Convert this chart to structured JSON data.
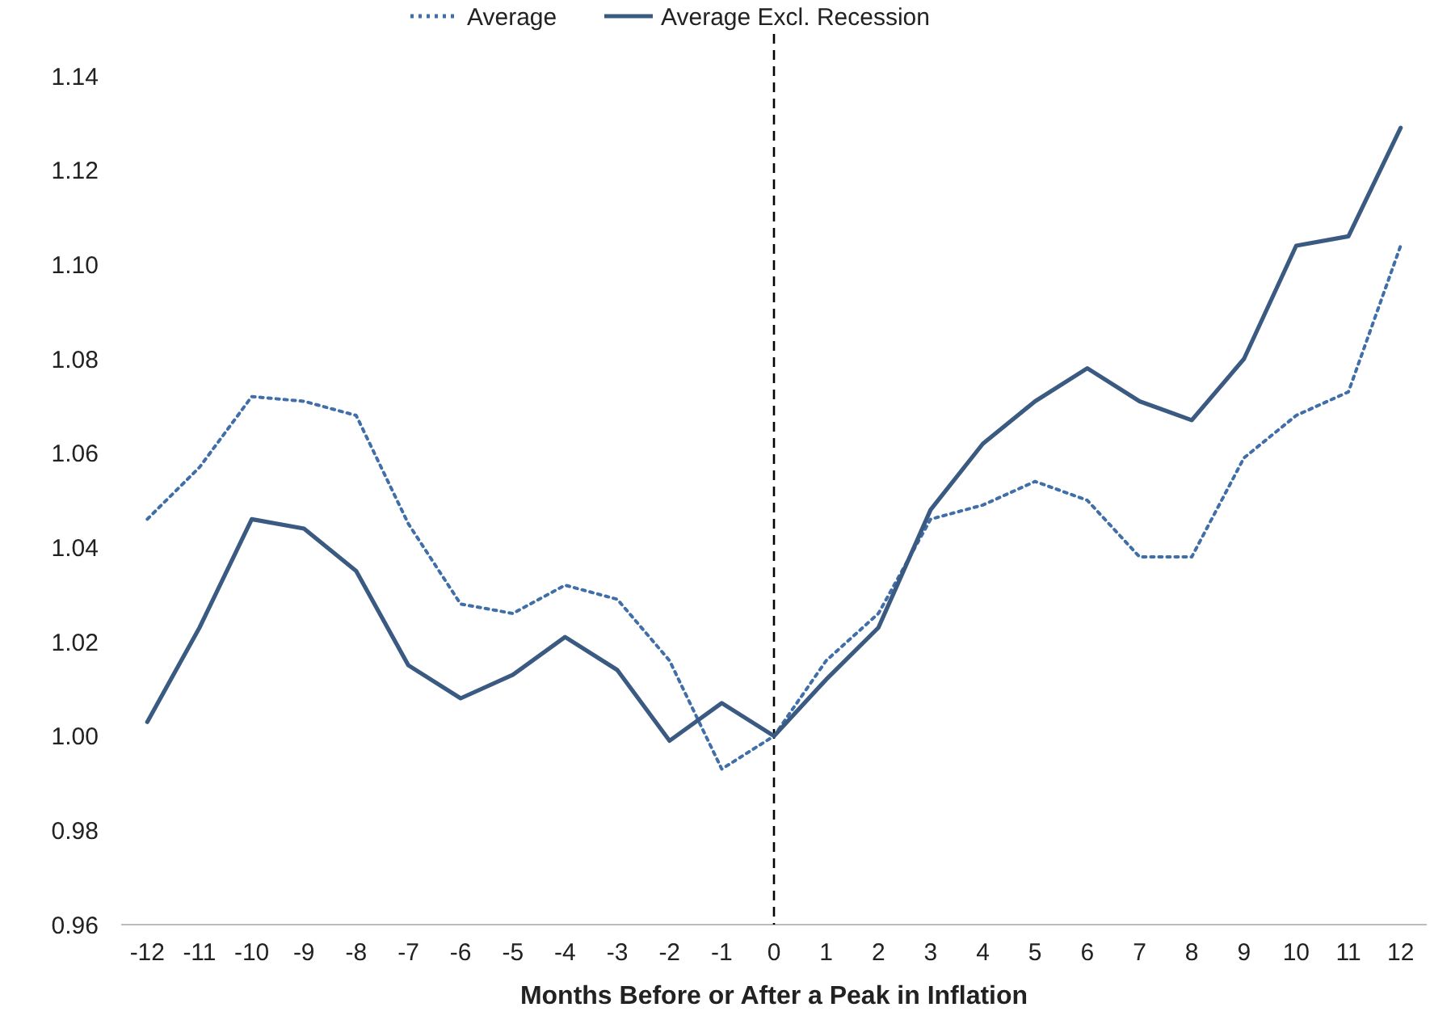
{
  "chart_data": {
    "type": "line",
    "xlabel": "Months Before or After a Peak in Inflation",
    "x": [
      -12,
      -11,
      -10,
      -9,
      -8,
      -7,
      -6,
      -5,
      -4,
      -3,
      -2,
      -1,
      0,
      1,
      2,
      3,
      4,
      5,
      6,
      7,
      8,
      9,
      10,
      11,
      12
    ],
    "series": [
      {
        "name": "Average",
        "color": "#3f6ea8",
        "line_style": "dotted",
        "values": [
          1.046,
          1.057,
          1.072,
          1.071,
          1.068,
          1.045,
          1.028,
          1.026,
          1.032,
          1.029,
          1.016,
          0.993,
          1.0,
          1.016,
          1.026,
          1.046,
          1.049,
          1.054,
          1.05,
          1.038,
          1.038,
          1.059,
          1.068,
          1.073,
          1.104
        ]
      },
      {
        "name": "Average Excl. Recession",
        "color": "#3b5a82",
        "line_style": "solid",
        "values": [
          1.003,
          1.023,
          1.046,
          1.044,
          1.035,
          1.015,
          1.008,
          1.013,
          1.021,
          1.014,
          0.999,
          1.007,
          1.0,
          1.012,
          1.023,
          1.048,
          1.062,
          1.071,
          1.078,
          1.071,
          1.067,
          1.08,
          1.104,
          1.106,
          1.129
        ]
      }
    ],
    "xlim": [
      -12.5,
      12.5
    ],
    "xticks": [
      -12,
      -11,
      -10,
      -9,
      -8,
      -7,
      -6,
      -5,
      -4,
      -3,
      -2,
      -1,
      0,
      1,
      2,
      3,
      4,
      5,
      6,
      7,
      8,
      9,
      10,
      11,
      12
    ],
    "ylim": [
      0.96,
      1.14
    ],
    "yticks": [
      {
        "value": 0.96,
        "label": "0.96"
      },
      {
        "value": 0.98,
        "label": "0.98"
      },
      {
        "value": 1.0,
        "label": "1.00"
      },
      {
        "value": 1.02,
        "label": "1.02"
      },
      {
        "value": 1.04,
        "label": "1.04"
      },
      {
        "value": 1.06,
        "label": "1.06"
      },
      {
        "value": 1.08,
        "label": "1.08"
      },
      {
        "value": 1.1,
        "label": "1.10"
      },
      {
        "value": 1.12,
        "label": "1.12"
      },
      {
        "value": 1.14,
        "label": "1.14"
      }
    ],
    "ref_lines": [
      {
        "axis": "x",
        "value": 0,
        "color": "#000000",
        "line_style": "dashed"
      }
    ],
    "grid": false,
    "legend": "top",
    "marker": "none"
  }
}
